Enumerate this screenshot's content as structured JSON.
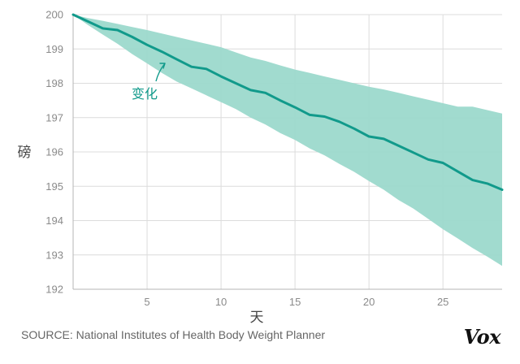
{
  "chart_data": {
    "type": "area",
    "title": "",
    "xlabel": "天",
    "ylabel": "磅",
    "xlim": [
      0,
      29
    ],
    "ylim": [
      192,
      200
    ],
    "x_ticks": [
      5,
      10,
      15,
      20,
      25
    ],
    "y_ticks": [
      192,
      193,
      194,
      195,
      196,
      197,
      198,
      199,
      200
    ],
    "grid": true,
    "annotation": "变化",
    "series": [
      {
        "name": "变化",
        "kind": "line",
        "color": "#119a8b",
        "x": [
          0,
          1,
          2,
          3,
          4,
          5,
          6,
          7,
          8,
          9,
          10,
          11,
          12,
          13,
          14,
          15,
          16,
          17,
          18,
          19,
          20,
          21,
          22,
          23,
          24,
          25,
          26,
          27,
          28,
          29
        ],
        "values": [
          200,
          199.8,
          199.6,
          199.55,
          199.35,
          199.12,
          198.92,
          198.7,
          198.48,
          198.42,
          198.2,
          198,
          197.8,
          197.72,
          197.5,
          197.3,
          197.08,
          197.03,
          196.88,
          196.68,
          196.45,
          196.38,
          196.18,
          195.98,
          195.78,
          195.68,
          195.43,
          195.18,
          195.08,
          194.9
        ]
      },
      {
        "name": "range-upper",
        "kind": "band-upper",
        "color": "#9cd9cc",
        "x": [
          0,
          1,
          2,
          3,
          4,
          5,
          6,
          7,
          8,
          9,
          10,
          11,
          12,
          13,
          14,
          15,
          16,
          17,
          18,
          19,
          20,
          21,
          22,
          23,
          24,
          25,
          26,
          27,
          28,
          29
        ],
        "values": [
          200,
          199.9,
          199.82,
          199.73,
          199.64,
          199.55,
          199.45,
          199.35,
          199.25,
          199.15,
          199.05,
          198.9,
          198.75,
          198.65,
          198.52,
          198.4,
          198.3,
          198.2,
          198.1,
          198,
          197.9,
          197.82,
          197.72,
          197.62,
          197.52,
          197.42,
          197.32,
          197.32,
          197.22,
          197.12
        ]
      },
      {
        "name": "range-lower",
        "kind": "band-lower",
        "color": "#9cd9cc",
        "x": [
          0,
          1,
          2,
          3,
          4,
          5,
          6,
          7,
          8,
          9,
          10,
          11,
          12,
          13,
          14,
          15,
          16,
          17,
          18,
          19,
          20,
          21,
          22,
          23,
          24,
          25,
          26,
          27,
          28,
          29
        ],
        "values": [
          200,
          199.7,
          199.42,
          199.15,
          198.85,
          198.58,
          198.3,
          198.05,
          197.85,
          197.65,
          197.45,
          197.25,
          197,
          196.8,
          196.55,
          196.35,
          196.1,
          195.9,
          195.65,
          195.42,
          195.15,
          194.9,
          194.6,
          194.35,
          194.05,
          193.75,
          193.48,
          193.2,
          192.95,
          192.68
        ]
      }
    ]
  },
  "source": "SOURCE: National Institutes of Health Body Weight Planner",
  "brand": "Vox",
  "colors": {
    "line": "#119a8b",
    "band": "#9cd9cc",
    "grid": "#dcdcdc",
    "axis": "#b5b5b5"
  }
}
